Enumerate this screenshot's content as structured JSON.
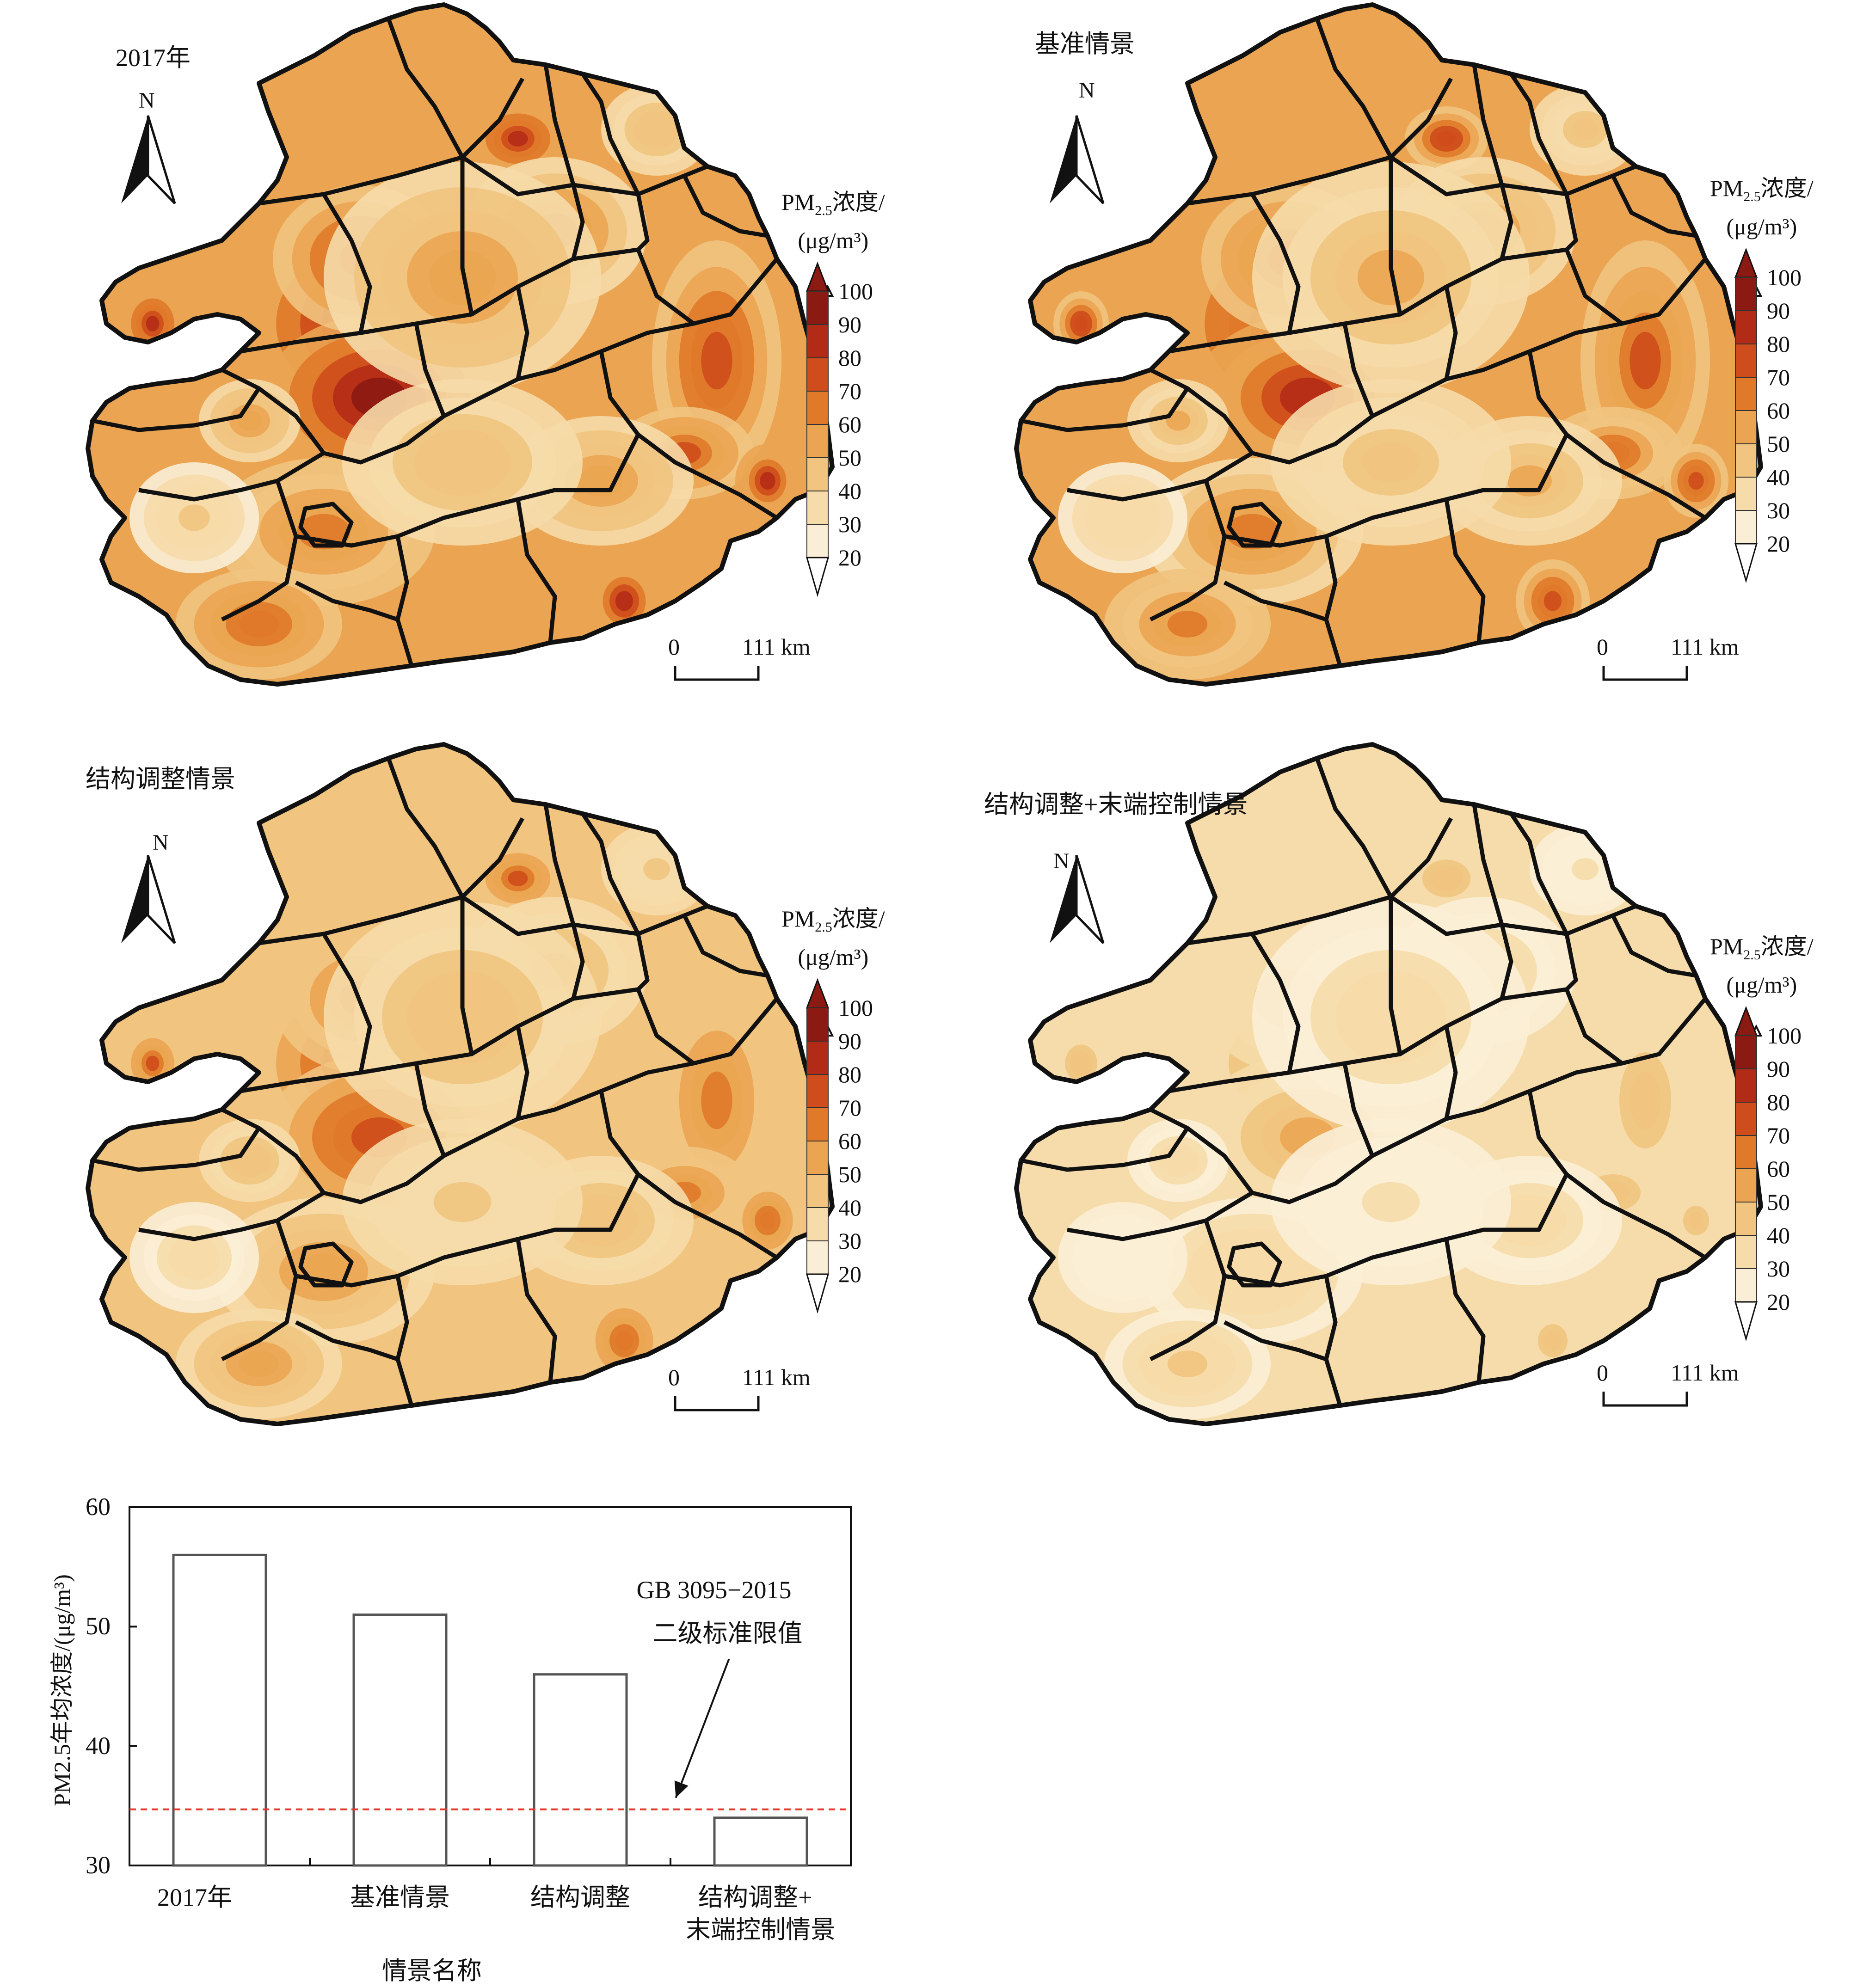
{
  "maps": [
    {
      "id": "p1",
      "title": "2017年",
      "level": 0.6
    },
    {
      "id": "p2",
      "title": "基准情景",
      "level": 0.52
    },
    {
      "id": "p3",
      "title": "结构调整情景",
      "level": 0.44
    },
    {
      "id": "p4",
      "title": "结构调整+末端控制情景",
      "level": 0.14
    }
  ],
  "north_label": "N",
  "legend": {
    "title_line1_prefix": "PM",
    "title_line1_sub": "2.5",
    "title_line1_suffix": "浓度/",
    "title_line2": "(μg/m³)",
    "ticks": [
      "100",
      "90",
      "80",
      "70",
      "60",
      "50",
      "40",
      "30",
      "20"
    ],
    "colors": [
      "#8b1a12",
      "#b22b16",
      "#cf4d1c",
      "#e07a2a",
      "#eba552",
      "#f1c47f",
      "#f6dcaa",
      "#fbeed6",
      "#ffffff"
    ]
  },
  "scale_bar": {
    "start": "0",
    "end": "111 km"
  },
  "chart_data": {
    "type": "bar",
    "categories": [
      "2017年",
      "基准情景",
      "结构调整",
      "结构调整+\n末端控制情景"
    ],
    "categories_display": [
      [
        "2017年"
      ],
      [
        "基准情景"
      ],
      [
        "结构调整"
      ],
      [
        "结构调整+",
        "末端控制情景"
      ]
    ],
    "values": [
      56,
      51,
      46,
      34
    ],
    "ylim": [
      30,
      60
    ],
    "yticks": [
      "60",
      "50",
      "40",
      "30"
    ],
    "ylabel": "PM2.5年均浓度/(μg/m³)",
    "xlabel": "情景名称",
    "reference_line": {
      "value": 34.7,
      "color": "#e03a2a"
    },
    "annotation_line1": "GB 3095−2015",
    "annotation_line2": "二级标准限值",
    "grid": false
  }
}
